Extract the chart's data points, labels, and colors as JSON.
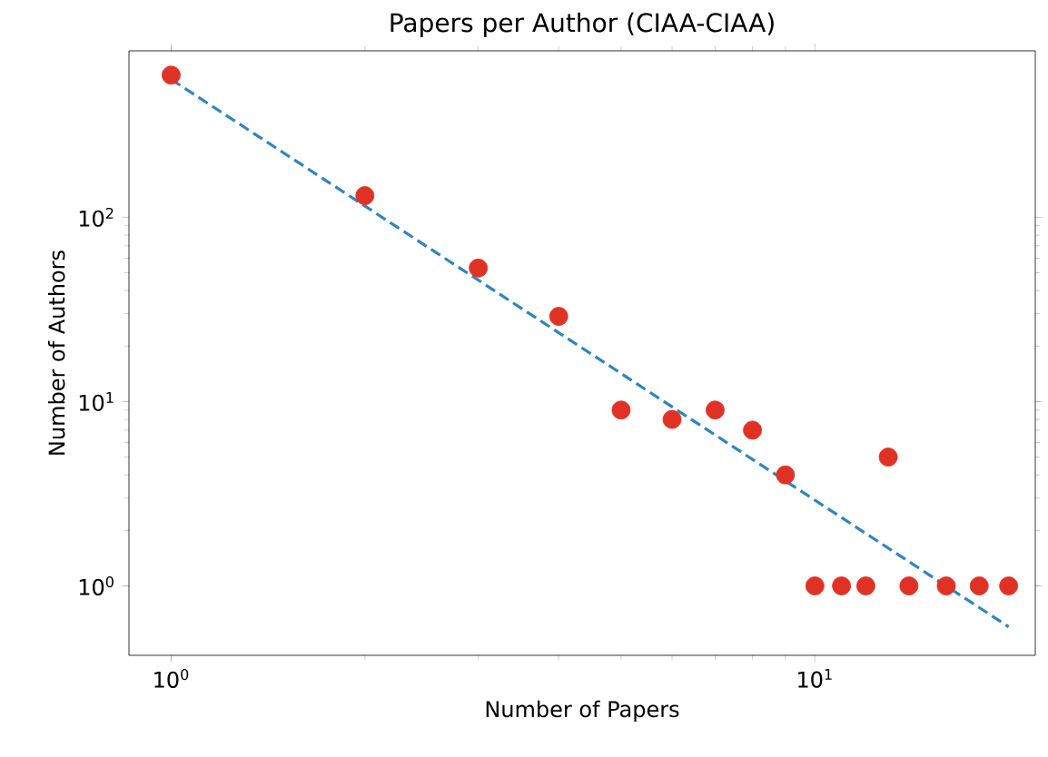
{
  "chart_data": {
    "type": "scatter",
    "title": "Papers per Author (CIAA-CIAA)",
    "xlabel": "Number of Papers",
    "ylabel": "Number of Authors",
    "log": "xy",
    "marker": "circle",
    "xlim": [
      0.86,
      22
    ],
    "ylim": [
      0.42,
      800
    ],
    "xticks": [
      {
        "value": 1,
        "label": "10$^{0}$"
      },
      {
        "value": 10,
        "label": "10$^{1}$"
      }
    ],
    "yticks": [
      {
        "value": 1,
        "label": "10$^{0}$"
      },
      {
        "value": 10,
        "label": "10$^{1}$"
      },
      {
        "value": 100,
        "label": "10$^{2}$"
      }
    ],
    "series": [
      {
        "color": "#e03224",
        "x": [
          1,
          2,
          3,
          4,
          5,
          6,
          7,
          8,
          9,
          10,
          11,
          12,
          13,
          14,
          16,
          18,
          20
        ],
        "values": [
          590,
          131,
          53,
          29,
          9,
          8,
          9,
          7,
          4,
          1,
          1,
          1,
          5,
          1,
          1,
          1,
          1
        ]
      },
      {
        "type": "line",
        "color": "#2e86c1",
        "line_style": "dashed",
        "marker": "none",
        "x": [
          1,
          20
        ],
        "values": [
          560,
          0.6
        ]
      }
    ]
  }
}
